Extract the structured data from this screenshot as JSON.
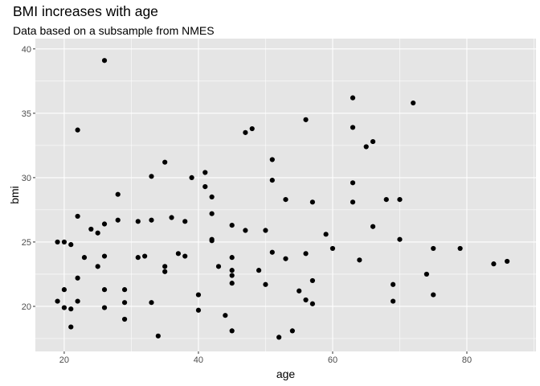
{
  "chart_data": {
    "type": "scatter",
    "title": "BMI increases with age",
    "subtitle": "Data based on a subsample from NMES",
    "xlabel": "age",
    "ylabel": "bmi",
    "xlim": [
      15.7,
      90.3
    ],
    "ylim": [
      16.5,
      40.8
    ],
    "xticks": [
      20,
      40,
      60,
      80
    ],
    "yticks": [
      20,
      25,
      30,
      35,
      40
    ],
    "grid": true,
    "background": "#e5e5e5",
    "grid_color": "#ffffff",
    "point_color": "#000000",
    "points": [
      {
        "x": 19,
        "y": 20.4
      },
      {
        "x": 19,
        "y": 25.0
      },
      {
        "x": 20,
        "y": 25.0
      },
      {
        "x": 20,
        "y": 21.3
      },
      {
        "x": 20,
        "y": 19.9
      },
      {
        "x": 21,
        "y": 24.8
      },
      {
        "x": 21,
        "y": 19.8
      },
      {
        "x": 21,
        "y": 18.4
      },
      {
        "x": 22,
        "y": 33.7
      },
      {
        "x": 22,
        "y": 27.0
      },
      {
        "x": 22,
        "y": 22.2
      },
      {
        "x": 22,
        "y": 20.4
      },
      {
        "x": 23,
        "y": 23.8
      },
      {
        "x": 24,
        "y": 26.0
      },
      {
        "x": 25,
        "y": 25.7
      },
      {
        "x": 25,
        "y": 23.1
      },
      {
        "x": 26,
        "y": 39.1
      },
      {
        "x": 26,
        "y": 26.4
      },
      {
        "x": 26,
        "y": 23.9
      },
      {
        "x": 26,
        "y": 21.3
      },
      {
        "x": 26,
        "y": 19.9
      },
      {
        "x": 28,
        "y": 28.7
      },
      {
        "x": 28,
        "y": 26.7
      },
      {
        "x": 29,
        "y": 21.3
      },
      {
        "x": 29,
        "y": 20.3
      },
      {
        "x": 29,
        "y": 19.0
      },
      {
        "x": 31,
        "y": 26.6
      },
      {
        "x": 31,
        "y": 23.8
      },
      {
        "x": 32,
        "y": 23.9
      },
      {
        "x": 33,
        "y": 30.1
      },
      {
        "x": 33,
        "y": 26.7
      },
      {
        "x": 33,
        "y": 20.3
      },
      {
        "x": 34,
        "y": 17.7
      },
      {
        "x": 35,
        "y": 31.2
      },
      {
        "x": 35,
        "y": 23.1
      },
      {
        "x": 35,
        "y": 22.7
      },
      {
        "x": 36,
        "y": 26.9
      },
      {
        "x": 37,
        "y": 24.1
      },
      {
        "x": 38,
        "y": 26.6
      },
      {
        "x": 38,
        "y": 23.9
      },
      {
        "x": 39,
        "y": 30.0
      },
      {
        "x": 40,
        "y": 20.9
      },
      {
        "x": 40,
        "y": 19.7
      },
      {
        "x": 41,
        "y": 30.4
      },
      {
        "x": 41,
        "y": 29.3
      },
      {
        "x": 42,
        "y": 28.5
      },
      {
        "x": 42,
        "y": 27.2
      },
      {
        "x": 42,
        "y": 25.2
      },
      {
        "x": 42,
        "y": 25.1
      },
      {
        "x": 43,
        "y": 23.1
      },
      {
        "x": 44,
        "y": 19.3
      },
      {
        "x": 45,
        "y": 26.3
      },
      {
        "x": 45,
        "y": 23.8
      },
      {
        "x": 45,
        "y": 22.8
      },
      {
        "x": 45,
        "y": 22.4
      },
      {
        "x": 45,
        "y": 21.8
      },
      {
        "x": 45,
        "y": 18.1
      },
      {
        "x": 47,
        "y": 33.5
      },
      {
        "x": 47,
        "y": 25.9
      },
      {
        "x": 48,
        "y": 33.8
      },
      {
        "x": 49,
        "y": 22.8
      },
      {
        "x": 50,
        "y": 25.9
      },
      {
        "x": 50,
        "y": 21.7
      },
      {
        "x": 51,
        "y": 31.4
      },
      {
        "x": 51,
        "y": 29.8
      },
      {
        "x": 51,
        "y": 24.2
      },
      {
        "x": 52,
        "y": 17.6
      },
      {
        "x": 53,
        "y": 28.3
      },
      {
        "x": 53,
        "y": 23.7
      },
      {
        "x": 54,
        "y": 18.1
      },
      {
        "x": 55,
        "y": 21.2
      },
      {
        "x": 56,
        "y": 34.5
      },
      {
        "x": 56,
        "y": 24.1
      },
      {
        "x": 56,
        "y": 20.5
      },
      {
        "x": 57,
        "y": 28.1
      },
      {
        "x": 57,
        "y": 22.0
      },
      {
        "x": 57,
        "y": 20.2
      },
      {
        "x": 59,
        "y": 25.6
      },
      {
        "x": 60,
        "y": 24.5
      },
      {
        "x": 63,
        "y": 36.2
      },
      {
        "x": 63,
        "y": 33.9
      },
      {
        "x": 63,
        "y": 29.6
      },
      {
        "x": 63,
        "y": 28.1
      },
      {
        "x": 64,
        "y": 23.6
      },
      {
        "x": 65,
        "y": 32.4
      },
      {
        "x": 66,
        "y": 32.8
      },
      {
        "x": 66,
        "y": 26.2
      },
      {
        "x": 68,
        "y": 28.3
      },
      {
        "x": 69,
        "y": 21.7
      },
      {
        "x": 69,
        "y": 20.4
      },
      {
        "x": 70,
        "y": 28.3
      },
      {
        "x": 70,
        "y": 25.2
      },
      {
        "x": 72,
        "y": 35.8
      },
      {
        "x": 74,
        "y": 22.5
      },
      {
        "x": 75,
        "y": 24.5
      },
      {
        "x": 75,
        "y": 20.9
      },
      {
        "x": 79,
        "y": 24.5
      },
      {
        "x": 84,
        "y": 23.3
      },
      {
        "x": 86,
        "y": 23.5
      }
    ]
  }
}
